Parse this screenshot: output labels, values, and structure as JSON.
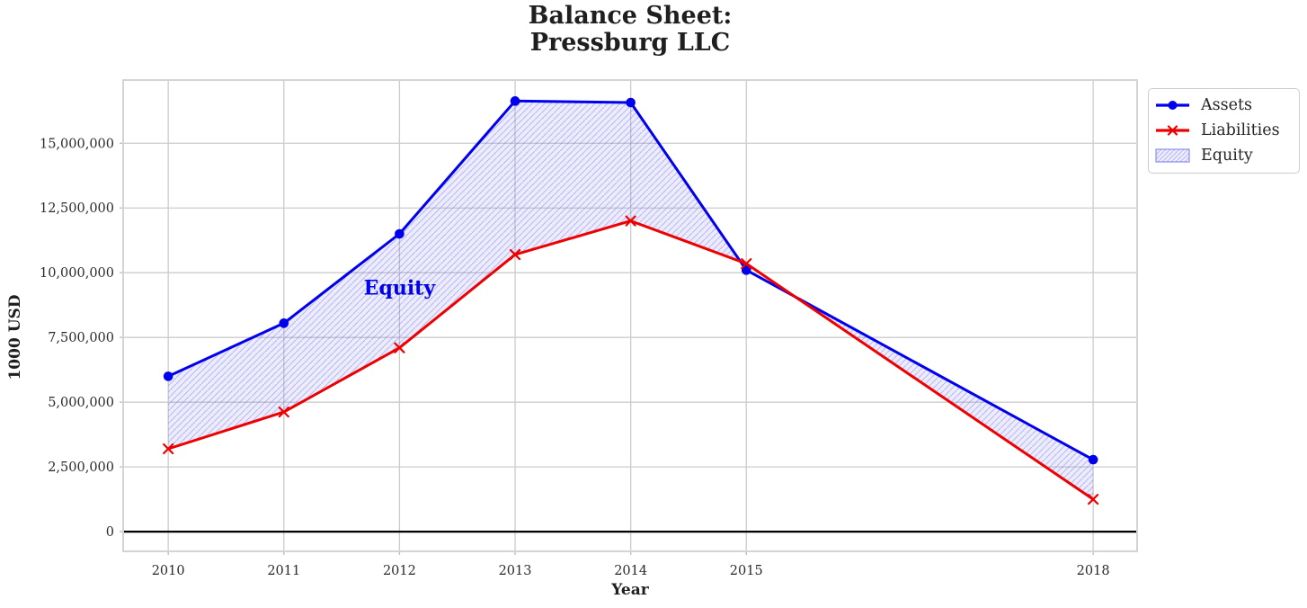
{
  "chart_data": {
    "type": "line",
    "title": "Balance Sheet:\nPressburg LLC",
    "xlabel": "Year",
    "ylabel": "1000 USD",
    "x": [
      2010,
      2011,
      2012,
      2013,
      2014,
      2015,
      2018
    ],
    "xtick_labels": [
      "2010",
      "2011",
      "2012",
      "2013",
      "2014",
      "2015",
      "2018"
    ],
    "yticks": [
      0,
      2500000,
      5000000,
      7500000,
      10000000,
      12500000,
      15000000
    ],
    "ytick_labels": [
      "0",
      "2,500,000",
      "5,000,000",
      "7,500,000",
      "10,000,000",
      "12,500,000",
      "15,000,000"
    ],
    "xlim": [
      2009.61,
      2018.38
    ],
    "ylim": [
      -760000,
      17440000
    ],
    "grid": true,
    "grid_color": "#cccccc",
    "frame_color": "#d4d4d4",
    "tick_color": "#c0c0c0",
    "text_color": "#2b2b2b",
    "zero_line": {
      "y": 0,
      "color": "#000000"
    },
    "series": [
      {
        "name": "Assets",
        "color": "#0000ee",
        "marker": "circle",
        "line_width": 3,
        "values": [
          6000000,
          8050000,
          11500000,
          16630000,
          16570000,
          10100000,
          2780000
        ]
      },
      {
        "name": "Liabilities",
        "color": "#ee0000",
        "marker": "x",
        "line_width": 3,
        "values": [
          3200000,
          4620000,
          7100000,
          10700000,
          12000000,
          10350000,
          1250000
        ]
      }
    ],
    "fill_between": {
      "name": "Equity",
      "upper": "Assets",
      "lower": "Liabilities",
      "where": "Assets > Liabilities",
      "hatch": "//",
      "fill_color": "rgba(95,95,235,0.12)",
      "hatch_color": "rgba(70,70,220,0.30)",
      "edge_color": "rgba(125,125,235,0.85)"
    },
    "annotation": {
      "text": "Equity",
      "x": 2012,
      "y": 9400000,
      "color": "#0000ee"
    },
    "legend": {
      "position": "outside-upper-right",
      "items": [
        {
          "label": "Assets",
          "swatch": "line-circle",
          "series_index": 0
        },
        {
          "label": "Liabilities",
          "swatch": "line-x",
          "series_index": 1
        },
        {
          "label": "Equity",
          "swatch": "hatch-patch",
          "series_index": null
        }
      ]
    }
  }
}
